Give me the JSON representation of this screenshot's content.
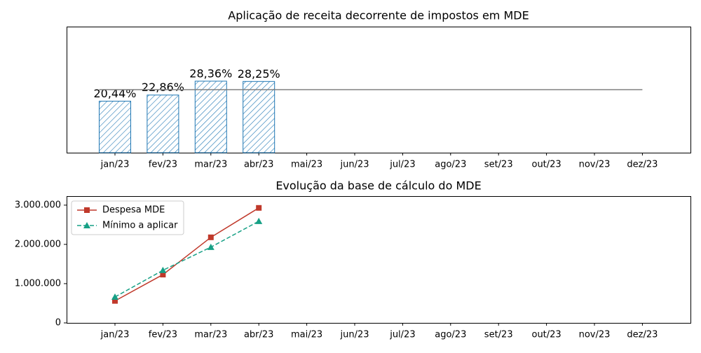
{
  "chart_data": [
    {
      "type": "bar",
      "title": "Aplicação de receita decorrente de impostos em MDE",
      "categories": [
        "jan/23",
        "fev/23",
        "mar/23",
        "abr/23",
        "mai/23",
        "jun/23",
        "jul/23",
        "ago/23",
        "set/23",
        "out/23",
        "nov/23",
        "dez/23"
      ],
      "values": [
        20.44,
        22.86,
        28.36,
        28.25,
        null,
        null,
        null,
        null,
        null,
        null,
        null,
        null
      ],
      "value_labels": [
        "20,44%",
        "22,86%",
        "28,36%",
        "28,25%",
        null,
        null,
        null,
        null,
        null,
        null,
        null,
        null
      ],
      "color": "#1f77b4",
      "hatch": true,
      "ylim": [
        0,
        50
      ],
      "reference_line": 25,
      "reference_color": "#808080"
    },
    {
      "type": "line",
      "title": "Evolução da base de cálculo do MDE",
      "categories": [
        "jan/23",
        "fev/23",
        "mar/23",
        "abr/23",
        "mai/23",
        "jun/23",
        "jul/23",
        "ago/23",
        "set/23",
        "out/23",
        "nov/23",
        "dez/23"
      ],
      "series": [
        {
          "name": "Despesa MDE",
          "color": "#c0392b",
          "marker": "square",
          "dash": false,
          "values": [
            560000,
            1230000,
            2180000,
            2930000,
            null,
            null,
            null,
            null,
            null,
            null,
            null,
            null
          ]
        },
        {
          "name": "Mínimo a aplicar",
          "color": "#16a085",
          "marker": "triangle",
          "dash": true,
          "values": [
            660000,
            1340000,
            1930000,
            2590000,
            null,
            null,
            null,
            null,
            null,
            null,
            null,
            null
          ]
        }
      ],
      "ylim": [
        0,
        3230000
      ],
      "yticks": [
        0,
        {
          "value": 1000000,
          "label": "1.000.000"
        },
        {
          "value": 2000000,
          "label": "2.000.000"
        },
        {
          "value": 3000000,
          "label": "3.000.000"
        }
      ],
      "legend": "upper left"
    }
  ]
}
